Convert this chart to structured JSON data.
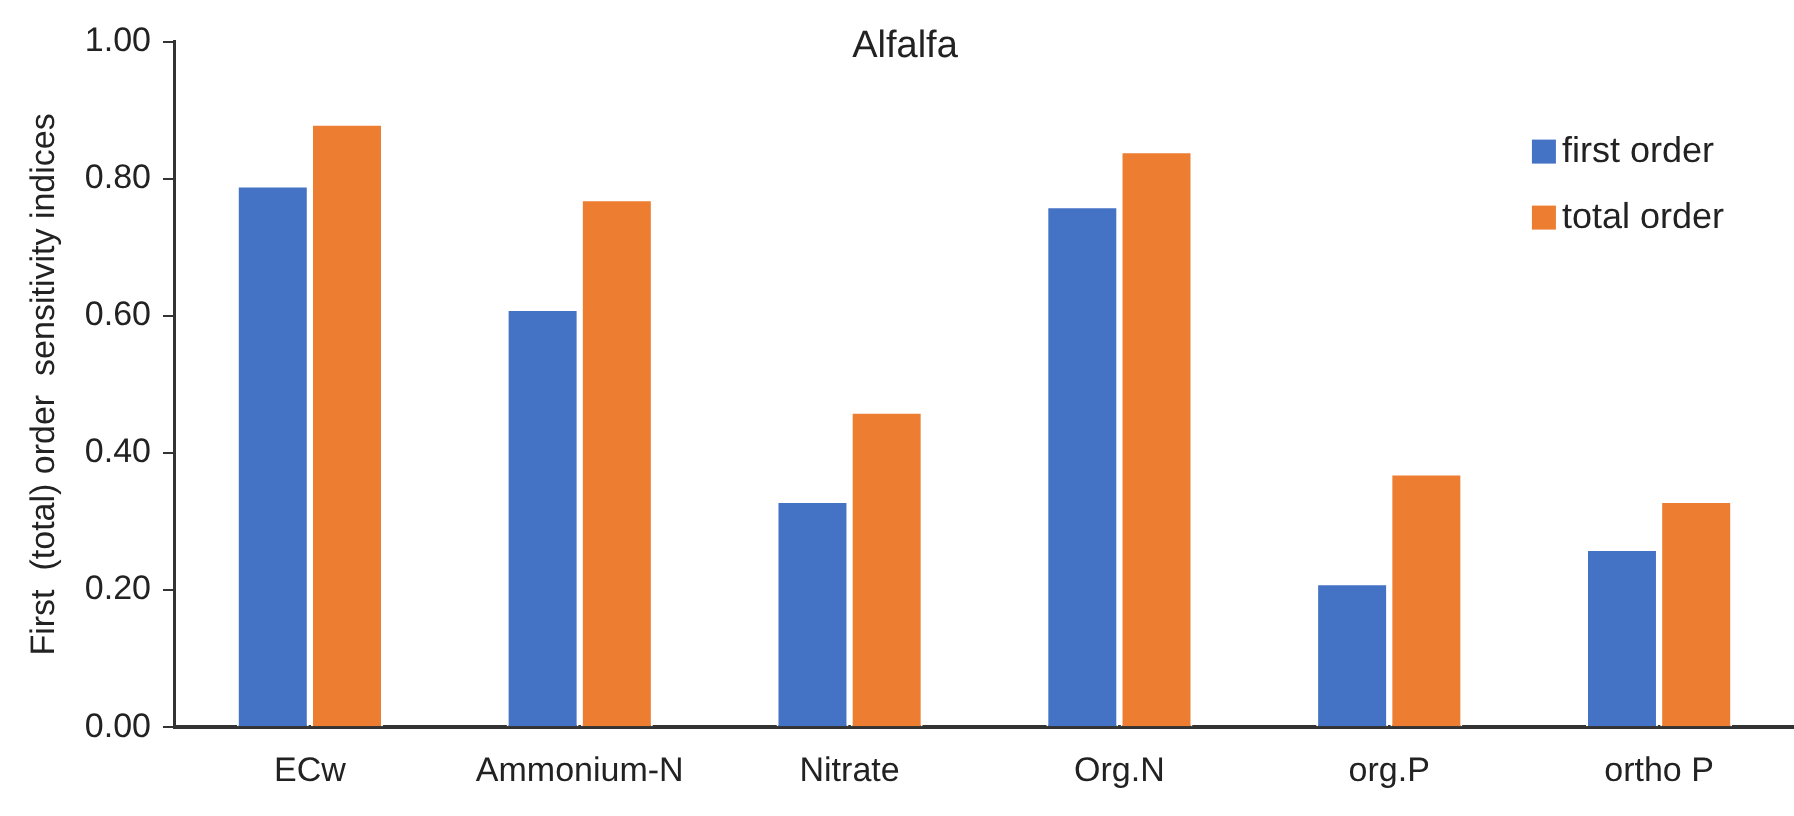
{
  "chart_data": {
    "type": "bar",
    "title": "Alfalfa",
    "ylabel": "First  (total) order  sensitivity indices",
    "categories": [
      "ECw",
      "Ammonium-N",
      "Nitrate",
      "Org.N",
      "org.P",
      "ortho P"
    ],
    "series": [
      {
        "name": "first order",
        "color": "#4472c4",
        "values": [
          0.79,
          0.61,
          0.33,
          0.76,
          0.21,
          0.26
        ]
      },
      {
        "name": "total order",
        "color": "#ed7d31",
        "values": [
          0.88,
          0.77,
          0.46,
          0.84,
          0.37,
          0.33
        ]
      }
    ],
    "ylim": [
      0,
      1
    ],
    "yticks": [
      {
        "value": 0,
        "label": "0.00"
      },
      {
        "value": 0.2,
        "label": "0.20"
      },
      {
        "value": 0.4,
        "label": "0.40"
      },
      {
        "value": 0.6,
        "label": "0.60"
      },
      {
        "value": 0.8,
        "label": "0.80"
      },
      {
        "value": 1,
        "label": "1.00"
      }
    ],
    "grid": false,
    "legend": "top right"
  }
}
